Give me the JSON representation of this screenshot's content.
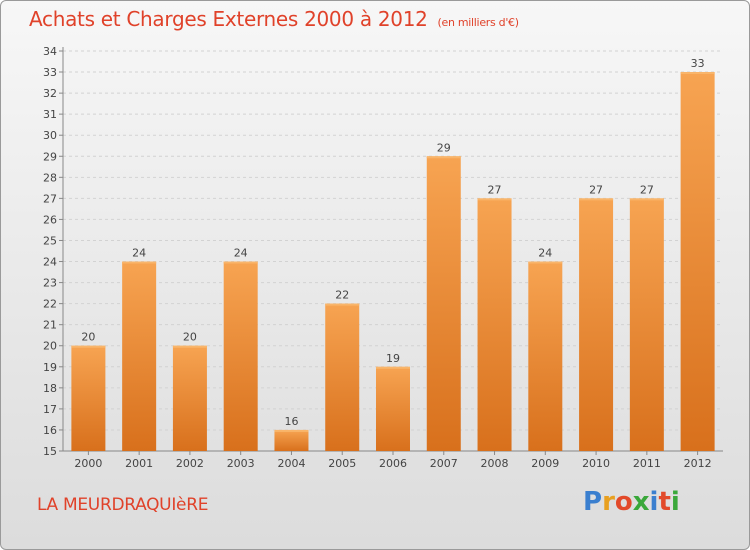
{
  "title": "Achats et Charges Externes 2000 à 2012",
  "subtitle": "(en milliers d'€)",
  "commune": "LA MEURDRAQUIèRE",
  "logo": {
    "letters": [
      "P",
      "r",
      "o",
      "x",
      "i",
      "t",
      "i"
    ],
    "colors": [
      "#3a7fcf",
      "#e8a020",
      "#e24a2a",
      "#3aa83a",
      "#3a7fcf",
      "#e24a2a",
      "#3aa83a"
    ]
  },
  "colors": {
    "bar_top": "#f7a452",
    "bar_bottom": "#d8701c",
    "title": "#e0422a"
  },
  "chart_data": {
    "type": "bar",
    "categories": [
      "2000",
      "2001",
      "2002",
      "2003",
      "2004",
      "2005",
      "2006",
      "2007",
      "2008",
      "2009",
      "2010",
      "2011",
      "2012"
    ],
    "values": [
      20,
      24,
      20,
      24,
      16,
      22,
      19,
      29,
      27,
      24,
      27,
      27,
      33
    ],
    "ylim": [
      15,
      34
    ],
    "yticks": [
      15,
      16,
      17,
      18,
      19,
      20,
      21,
      22,
      23,
      24,
      25,
      26,
      27,
      28,
      29,
      30,
      31,
      32,
      33,
      34
    ],
    "grid": true
  }
}
